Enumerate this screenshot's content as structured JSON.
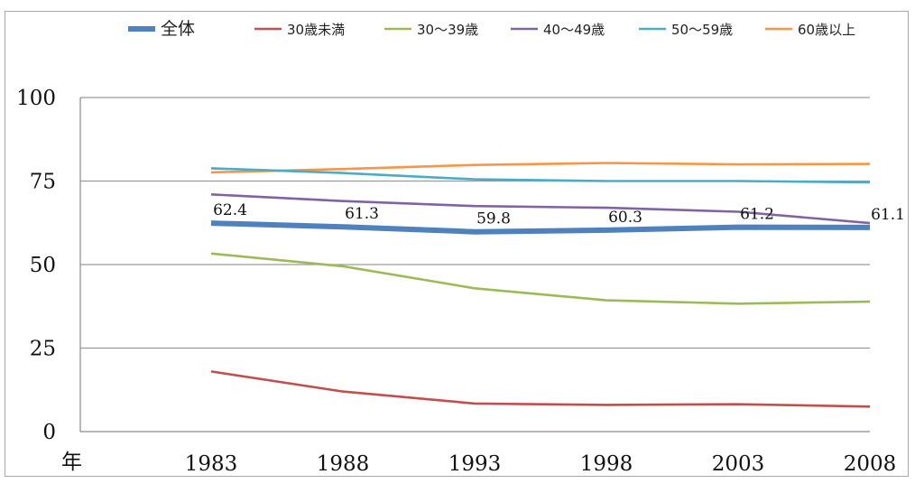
{
  "chart_data": {
    "type": "line",
    "x_unit_label": "年",
    "categories": [
      "1983",
      "1988",
      "1993",
      "1998",
      "2003",
      "2008"
    ],
    "ylim": [
      0,
      100
    ],
    "yticks": [
      0,
      25,
      50,
      75,
      100
    ],
    "grid": true,
    "legend_position": "top",
    "series": [
      {
        "name": "全体",
        "color": "#4f81bd",
        "values": [
          62.4,
          61.3,
          59.8,
          60.3,
          61.2,
          61.1
        ],
        "data_labels": [
          "62.4",
          "61.3",
          "59.8",
          "60.3",
          "61.2",
          "61.1"
        ],
        "emphasis": true
      },
      {
        "name": "30歳未満",
        "color": "#c0504d",
        "values": [
          18.0,
          12.0,
          8.4,
          8.0,
          8.2,
          7.5
        ]
      },
      {
        "name": "30～39歳",
        "color": "#9bbb59",
        "values": [
          53.3,
          49.5,
          42.9,
          39.3,
          38.3,
          38.9
        ]
      },
      {
        "name": "40～49歳",
        "color": "#8064a2",
        "values": [
          71.0,
          69.0,
          67.5,
          67.0,
          65.8,
          62.4
        ]
      },
      {
        "name": "50～59歳",
        "color": "#4bacc6",
        "values": [
          78.8,
          77.4,
          75.5,
          75.0,
          75.0,
          74.6
        ]
      },
      {
        "name": "60歳以上",
        "color": "#f79646",
        "values": [
          77.6,
          78.6,
          79.8,
          80.4,
          80.0,
          80.1
        ]
      }
    ]
  }
}
